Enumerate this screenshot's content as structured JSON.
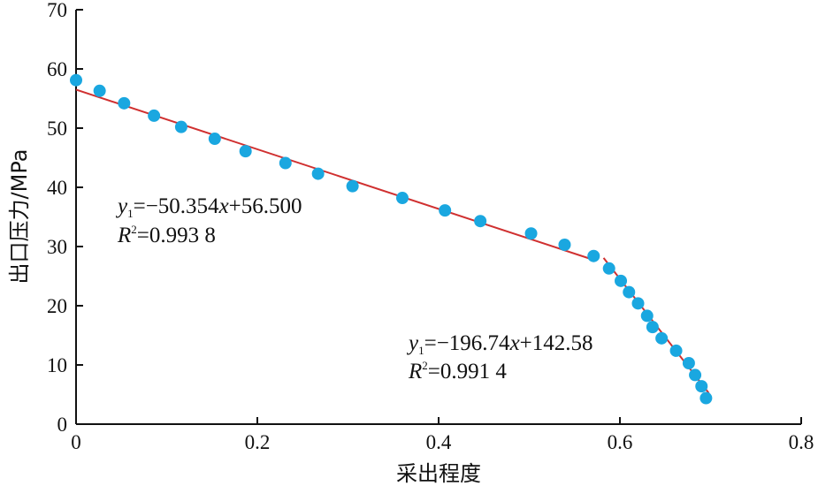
{
  "chart_data": {
    "type": "scatter",
    "xlabel": "采出程度",
    "ylabel": "出口压力/MPa",
    "xlim": [
      0,
      0.8
    ],
    "ylim": [
      0,
      70
    ],
    "x_ticks": [
      "0",
      "0.2",
      "0.4",
      "0.6",
      "0.8"
    ],
    "y_ticks": [
      "0",
      "10",
      "20",
      "30",
      "40",
      "50",
      "60",
      "70"
    ],
    "grid": false,
    "colors": {
      "points": "#1aa7e0",
      "fit_lines": "#d03030",
      "axes": "#111111"
    },
    "series": [
      {
        "type": "scatter",
        "points": [
          {
            "x": 0.0,
            "y": 58.1
          },
          {
            "x": 0.026,
            "y": 56.3
          },
          {
            "x": 0.053,
            "y": 54.2
          },
          {
            "x": 0.086,
            "y": 52.1
          },
          {
            "x": 0.116,
            "y": 50.2
          },
          {
            "x": 0.153,
            "y": 48.2
          },
          {
            "x": 0.187,
            "y": 46.1
          },
          {
            "x": 0.231,
            "y": 44.1
          },
          {
            "x": 0.267,
            "y": 42.3
          },
          {
            "x": 0.305,
            "y": 40.2
          },
          {
            "x": 0.36,
            "y": 38.2
          },
          {
            "x": 0.407,
            "y": 36.1
          },
          {
            "x": 0.446,
            "y": 34.3
          },
          {
            "x": 0.502,
            "y": 32.2
          },
          {
            "x": 0.539,
            "y": 30.3
          },
          {
            "x": 0.571,
            "y": 28.4
          },
          {
            "x": 0.588,
            "y": 26.3
          },
          {
            "x": 0.601,
            "y": 24.2
          },
          {
            "x": 0.61,
            "y": 22.3
          },
          {
            "x": 0.62,
            "y": 20.4
          },
          {
            "x": 0.63,
            "y": 18.3
          },
          {
            "x": 0.636,
            "y": 16.4
          },
          {
            "x": 0.646,
            "y": 14.5
          },
          {
            "x": 0.662,
            "y": 12.4
          },
          {
            "x": 0.676,
            "y": 10.3
          },
          {
            "x": 0.683,
            "y": 8.3
          },
          {
            "x": 0.69,
            "y": 6.4
          },
          {
            "x": 0.695,
            "y": 4.4
          }
        ]
      }
    ],
    "fits": [
      {
        "x_range": [
          0,
          0.57
        ],
        "slope": -50.354,
        "intercept": 56.5,
        "equation_label": "y1=−50.354x+56.500",
        "r2_label": "R2=0.993 8"
      },
      {
        "x_range": [
          0.582,
          0.698
        ],
        "slope": -196.74,
        "intercept": 142.58,
        "equation_label": "y1=−196.74x+142.58",
        "r2_label": "R2=0.991 4"
      }
    ],
    "annotations": {
      "fit1": {
        "y": "y",
        "sub": "1",
        "coef": "=−50.354",
        "x": "x",
        "rest": "+56.500",
        "r": "R",
        "sup": "2",
        "r2": "=0.993 8"
      },
      "fit2": {
        "y": "y",
        "sub": "1",
        "coef": "=−196.74",
        "x": "x",
        "rest": "+142.58",
        "r": "R",
        "sup": "2",
        "r2": "=0.991 4"
      }
    }
  }
}
